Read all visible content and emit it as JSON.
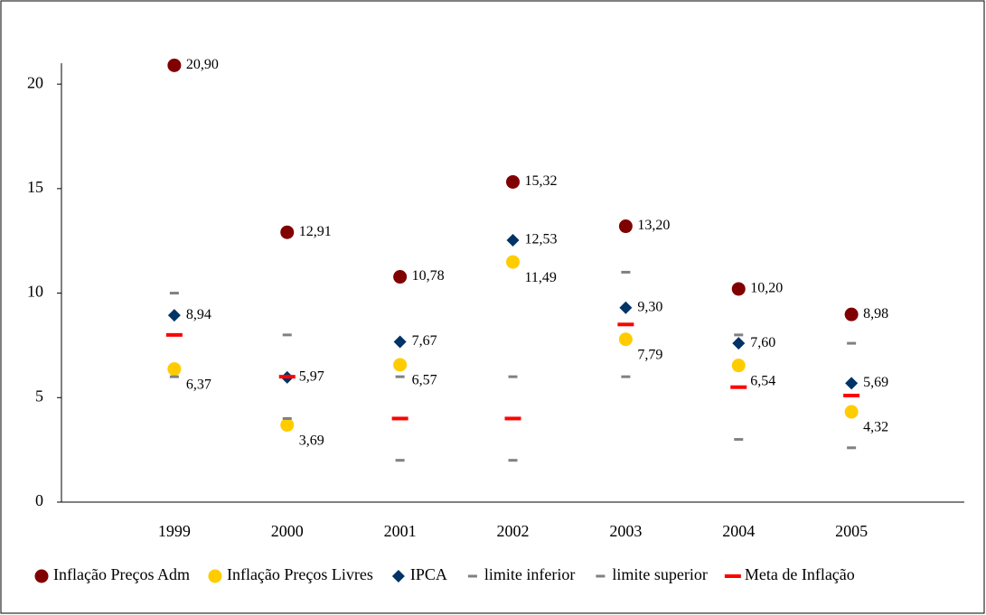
{
  "chart_data": {
    "type": "scatter",
    "categories": [
      "1999",
      "2000",
      "2001",
      "2002",
      "2003",
      "2004",
      "2005"
    ],
    "ylim": [
      0,
      21
    ],
    "yticks": [
      0,
      5,
      10,
      15,
      20
    ],
    "series": [
      {
        "name": "Inflação Preços Adm",
        "color": "#800000",
        "marker": "circle",
        "values": [
          20.9,
          12.91,
          10.78,
          15.32,
          13.2,
          10.2,
          8.98
        ],
        "value_labels": [
          "20,90",
          "12,91",
          "10,78",
          "15,32",
          "13,20",
          "10,20",
          "8,98"
        ]
      },
      {
        "name": "Inflação Preços Livres",
        "color": "#ffcc00",
        "marker": "circle",
        "values": [
          6.37,
          3.69,
          6.57,
          11.49,
          7.79,
          6.54,
          4.32
        ],
        "value_labels": [
          "6,37",
          "3,69",
          "6,57",
          "11,49",
          "7,79",
          "6,54",
          "4,32"
        ]
      },
      {
        "name": "IPCA",
        "color": "#003366",
        "marker": "diamond",
        "values": [
          8.94,
          5.97,
          7.67,
          12.53,
          9.3,
          7.6,
          5.69
        ],
        "value_labels": [
          "8,94",
          "5,97",
          "7,67",
          "12,53",
          "9,30",
          "7,60",
          "5,69"
        ]
      },
      {
        "name": "limite inferior",
        "color": "#808080",
        "marker": "dash",
        "values": [
          6,
          4,
          2,
          2,
          6,
          3,
          2.6
        ]
      },
      {
        "name": "limite superior",
        "color": "#808080",
        "marker": "dash",
        "values": [
          10,
          8,
          6,
          6,
          11,
          8,
          7.6
        ]
      },
      {
        "name": "Meta de Inflação",
        "color": "#ff0000",
        "marker": "wide-dash",
        "values": [
          8,
          6,
          4,
          4,
          8.5,
          5.5,
          5.1
        ]
      }
    ]
  }
}
